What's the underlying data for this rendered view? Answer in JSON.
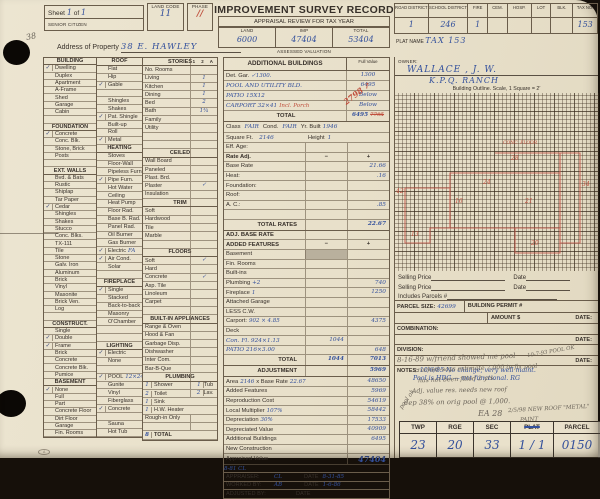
{
  "header": {
    "sheet_label": "Sheet",
    "sheet_no": "1",
    "of_label": "of",
    "sheet_total": "1",
    "senior_citizen": "SENIOR CITIZEN",
    "land_code_label": "LAND CODE",
    "land_code_value": "11",
    "phase_label": "PHASE",
    "phase_value": "∕∕",
    "title": "IMPROVEMENT SURVEY RECORD",
    "subtitle": "APPRAISAL REVIEW FOR TAX YEAR",
    "valuation": {
      "caption": "ASSESSED VALUATION",
      "cols": [
        {
          "label": "LAND",
          "value": "6000"
        },
        {
          "label": "IMP",
          "value": "47404"
        },
        {
          "label": "TOTAL",
          "value": "53404"
        }
      ]
    },
    "district_cols": [
      {
        "label": "ROAD DISTRICT",
        "value": "1"
      },
      {
        "label": "SCHOOL DISTRICT",
        "value": "246"
      },
      {
        "label": "FIRE",
        "value": "1"
      },
      {
        "label": "CEM.",
        "value": ""
      },
      {
        "label": "HOSP.",
        "value": ""
      },
      {
        "label": "LOT",
        "value": ""
      },
      {
        "label": "BLK.",
        "value": ""
      },
      {
        "label": "TAX NO.",
        "value": "153"
      }
    ],
    "plat_name_label": "PLAT NAME",
    "plat_name_value": "TAX 153",
    "address_label": "Address of Property",
    "address_value": "38  E. HAWLEY",
    "margin_pencil_1": "38",
    "margin_pencil_2": "M"
  },
  "checklists": {
    "colA": [
      {
        "h": 1,
        "l": "BUILDING"
      },
      {
        "c": 1,
        "l": "Dwelling"
      },
      {
        "l": "Duplex"
      },
      {
        "l": "Apartment"
      },
      {
        "l": "A-Frame"
      },
      {
        "l": "Shed"
      },
      {
        "l": "Garage"
      },
      {
        "l": "Cabin"
      },
      {
        "l": ""
      },
      {
        "h": 1,
        "l": "FOUNDATION"
      },
      {
        "c": 1,
        "l": "Concrete"
      },
      {
        "l": "Conc. Blk."
      },
      {
        "l": "Stone, Brick"
      },
      {
        "l": "Posts"
      },
      {
        "l": ""
      },
      {
        "h": 1,
        "l": "EXT. WALLS"
      },
      {
        "l": "Bvd. & Bats"
      },
      {
        "l": "Rustic"
      },
      {
        "l": "Shiplap"
      },
      {
        "l": "Tar Paper"
      },
      {
        "c": 1,
        "l": "Cedar"
      },
      {
        "l": "Shingles"
      },
      {
        "l": "Shakes"
      },
      {
        "l": "Stucco"
      },
      {
        "l": "Conc. Blks."
      },
      {
        "l": "TX-111"
      },
      {
        "l": "Tile"
      },
      {
        "l": "Stone"
      },
      {
        "l": "Galv. Iron"
      },
      {
        "l": "Aluminum"
      },
      {
        "l": "Brick"
      },
      {
        "l": "Vinyl"
      },
      {
        "l": "Masonite"
      },
      {
        "l": "Brick Ven."
      },
      {
        "l": "Log"
      },
      {
        "l": ""
      },
      {
        "h": 1,
        "l": "CONSTRUCT."
      },
      {
        "l": "Single"
      },
      {
        "c": 1,
        "l": "Double"
      },
      {
        "c": 1,
        "l": "Frame"
      },
      {
        "l": "Brick"
      },
      {
        "l": "Concrete"
      },
      {
        "l": "Concrete Blk."
      },
      {
        "l": "Pumice"
      },
      {
        "h": 1,
        "l": "BASEMENT"
      },
      {
        "c": 1,
        "l": "None"
      },
      {
        "l": "Full"
      },
      {
        "l": "Part"
      },
      {
        "l": "Concrete Floor"
      },
      {
        "l": "Dirt Floor"
      },
      {
        "l": "Garage"
      },
      {
        "l": "Fin. Rooms"
      }
    ],
    "colB": [
      {
        "h": 1,
        "l": "ROOF"
      },
      {
        "l": "Flat"
      },
      {
        "l": "Hip"
      },
      {
        "c": 1,
        "l": "Gable"
      },
      {
        "l": ""
      },
      {
        "l": "Shingles"
      },
      {
        "l": "Shakes"
      },
      {
        "c": 1,
        "l": "Pat. Shingle"
      },
      {
        "l": "Built-up"
      },
      {
        "l": "Roll"
      },
      {
        "c": 1,
        "l": "Metal"
      },
      {
        "h": 1,
        "l": "HEATING"
      },
      {
        "l": "Stoves"
      },
      {
        "l": "Floor-Wall"
      },
      {
        "l": "Pipeless Furn."
      },
      {
        "c": 1,
        "l": "Pipe Furn."
      },
      {
        "l": "Hot Water"
      },
      {
        "l": "Ceiling"
      },
      {
        "l": "Heat Pump"
      },
      {
        "l": "Floor Rad."
      },
      {
        "l": "Base B. Rad."
      },
      {
        "l": "Panel Rad."
      },
      {
        "l": "Oil Burner"
      },
      {
        "l": "Gas Burner"
      },
      {
        "c": 1,
        "l": "Electric",
        "hand": "FA"
      },
      {
        "c": 1,
        "l": "Air Cond."
      },
      {
        "l": "Solar"
      },
      {
        "l": ""
      },
      {
        "h": 1,
        "l": "FIREPLACE"
      },
      {
        "c": 1,
        "l": "Single"
      },
      {
        "l": "Stacked"
      },
      {
        "l": "Back-to-back"
      },
      {
        "l": "Masonry"
      },
      {
        "l": "O'Chamber"
      },
      {
        "l": ""
      },
      {
        "l": ""
      },
      {
        "h": 1,
        "l": "LIGHTING"
      },
      {
        "c": 1,
        "l": "Electric"
      },
      {
        "l": "None"
      },
      {
        "l": ""
      },
      {
        "c": 1,
        "l": "POOL",
        "hand": "12×24"
      },
      {
        "l": "Gunite"
      },
      {
        "l": "Vinyl"
      },
      {
        "l": "Fiberglass"
      },
      {
        "c": 1,
        "l": "Concrete"
      },
      {
        "l": ""
      },
      {
        "l": "Sauna"
      },
      {
        "l": "Hot Tub"
      }
    ],
    "colC": [
      {
        "h": 1,
        "l": "STORIES",
        "v": "1 2 A B"
      },
      {
        "l": "No. Rooms"
      },
      {
        "l": "Living",
        "v": "1"
      },
      {
        "l": "Kitchen",
        "v": "1"
      },
      {
        "l": "Dining",
        "v": "1"
      },
      {
        "l": "Bed",
        "v": "2"
      },
      {
        "l": "Bath",
        "v": "1¾"
      },
      {
        "l": "Family"
      },
      {
        "l": "Utility"
      },
      {
        "l": ""
      },
      {
        "l": ""
      },
      {
        "h": 1,
        "l": "CEILED"
      },
      {
        "l": "Wall Board"
      },
      {
        "l": "Paneled"
      },
      {
        "l": "Plast. Brd."
      },
      {
        "l": "Plaster",
        "v": "✓"
      },
      {
        "l": "Insulation"
      },
      {
        "h": 1,
        "l": "TRIM"
      },
      {
        "l": "Soft"
      },
      {
        "l": "Hardwood"
      },
      {
        "l": "Tile"
      },
      {
        "l": "Marble"
      },
      {
        "l": ""
      },
      {
        "h": 1,
        "l": "FLOORS"
      },
      {
        "l": "Soft",
        "v": "✓"
      },
      {
        "l": "Hard"
      },
      {
        "l": "Concrete",
        "v": "✓"
      },
      {
        "l": "Asp. Tile"
      },
      {
        "l": "Linoleum"
      },
      {
        "l": "Carpet"
      },
      {
        "l": ""
      },
      {
        "h": 1,
        "l": "BUILT-IN APPLIANCES"
      },
      {
        "l": "Range & Oven"
      },
      {
        "c": 1,
        "l": "Hood & Fan"
      },
      {
        "l": "Garbage Disp."
      },
      {
        "c": 1,
        "l": "Dishwasher"
      },
      {
        "l": "Inter Com."
      },
      {
        "l": "Bar-B-Que"
      },
      {
        "h": 1,
        "l": "PLUMBING"
      },
      {
        "n": "1",
        "l": "Shower",
        "n2": "1",
        "l2": "Tub"
      },
      {
        "n": "2",
        "l": "Toilet",
        "n2": "2",
        "l2": "Lav."
      },
      {
        "n": "1",
        "l": "Sink"
      },
      {
        "n": "1",
        "l": "H.W. Heater"
      },
      {
        "l": "Rough-in Only"
      },
      {
        "l": ""
      },
      {
        "n": "8",
        "l": "TOTAL",
        "total": 1
      }
    ]
  },
  "additional_buildings": {
    "title": "ADDITIONAL BUILDINGS",
    "full_value_label": "Full Value",
    "rows": [
      {
        "desc": "Det. Gar.",
        "hand": "✓1300.",
        "v": "1300"
      },
      {
        "desc": "POOL AND UTILITY BLD.",
        "hwdesc": 1,
        "v": "6495"
      },
      {
        "desc": "PATIO 15X12",
        "hwdesc": 1,
        "v": "Below"
      },
      {
        "desc": "CARPORT 32×41",
        "hwdesc": 1,
        "red": "Incl. Porch",
        "v": "Below"
      }
    ],
    "total_label": "TOTAL",
    "total_value": "6495",
    "total_struck": "7795",
    "diag_note": "2798 ↗"
  },
  "class_row": {
    "class_label": "Class",
    "class_value": "FAIR",
    "cond_label": "Cond.",
    "cond_value": "FAIR",
    "yr_label": "Yr. Built",
    "yr_value": "1946"
  },
  "sqft_row": {
    "label": "Square Ft.",
    "value": "2146",
    "height_label": "Height",
    "height_value": "1"
  },
  "rates": [
    {
      "l": "Eff. Age:"
    },
    {
      "l": "Rate Adj.",
      "m": "−",
      "p": "+",
      "hd": 1
    },
    {
      "l": "Base Rate",
      "p": "21.66"
    },
    {
      "l": "Heat:",
      "p": ".16"
    },
    {
      "l": "Foundation:"
    },
    {
      "l": "Roof:"
    },
    {
      "l": "A. C.:",
      "p": ".85"
    },
    {
      "l": ""
    },
    {
      "l": "TOTAL RATES",
      "p": "22.67",
      "tot": 1
    },
    {
      "l": "ADJ. BASE RATE",
      "hd": 1
    }
  ],
  "added_features": [
    {
      "l": "ADDED FEATURES",
      "m": "−",
      "p": "+",
      "hd": 1
    },
    {
      "l": "Basement",
      "shade": 1
    },
    {
      "l": "Fin. Rooms"
    },
    {
      "l": "Built-ins"
    },
    {
      "l": "Plumbing",
      "hand": "+2",
      "p": "740"
    },
    {
      "l": "Fireplace",
      "hand": "1",
      "p": "1250"
    },
    {
      "l": "Attached Garage"
    },
    {
      "l": "LESS C.W."
    },
    {
      "l": "Carport:",
      "hand": "902 × 4.85",
      "p": "4375"
    },
    {
      "l": "Deck"
    },
    {
      "l": "Con. Fl. 924×1.13",
      "hw": 1,
      "m": "1044"
    },
    {
      "l": "PATIO 216×3.00",
      "hw": 1,
      "p": "648"
    },
    {
      "l": "TOTAL",
      "m": "1044",
      "p": "7013",
      "tot": 1
    },
    {
      "l": "ADJUSTMENT",
      "p": "5969",
      "tot": 1
    }
  ],
  "costs": [
    {
      "pre": "Area",
      "h1": "2146",
      "mid": "x Base Rate",
      "h2": "22.67",
      "v": "48650"
    },
    {
      "pre": "Added Features",
      "v": "5969"
    },
    {
      "pre": "Reproduction Cost",
      "v": "54619"
    },
    {
      "pre": "Local Multiplier",
      "h2": "107%",
      "v": "58442"
    },
    {
      "pre": "Depreciation",
      "h2": "30%",
      "v": "17533"
    },
    {
      "pre": "Depreciated Value",
      "v": "40909"
    },
    {
      "pre": "Additional Buildings",
      "v": "6495"
    },
    {
      "pre": "New Construction",
      "v": ""
    },
    {
      "pre": "Appraised Value",
      "v": "47404",
      "big": 1
    },
    {
      "handnote": "8-81  CL"
    }
  ],
  "signoff": [
    {
      "l": "APPRAISER:",
      "h": "CL",
      "dl": "DATE",
      "d": "8-31-85"
    },
    {
      "l": "WORKED BY:",
      "h": "AB",
      "dl": "DATE",
      "d": "1-6-86"
    },
    {
      "l": "ADJUSTED BY:",
      "h": "",
      "dl": "DATE",
      "d": ""
    }
  ],
  "right": {
    "owner_label": "OWNER:",
    "owner_name": "WALLACE , J. W.",
    "owner_name2": "K.P.Q.  RANCH",
    "grid_caption": "Building Outline.  Scale, 1 Square = 2′",
    "outline_dims": [
      "42",
      "13",
      "16",
      "24",
      "21",
      "20",
      "28",
      "34"
    ],
    "outline_note": "CONC. FLOOR",
    "selling": [
      {
        "label": "Selling Price",
        "date_label": "Date"
      },
      {
        "label": "Selling Price",
        "date_label": "Date"
      }
    ],
    "includes_label": "Includes Parcels #",
    "parcel": {
      "size_label": "PARCEL SIZE:",
      "size_value": "42699",
      "permit_label": "BUILDING PERMIT #",
      "amount_label": "AMOUNT $",
      "date_label": "DATE:",
      "combination_label": "COMBINATION:",
      "division_label": "DIVISION:"
    },
    "notes_label": "NOTES:",
    "notes_lines": [
      "10/6/85  No change, very well maint.",
      "Pool is HDG — not functional.  RG"
    ],
    "pencil_notes": [
      "8-16-89  w/friend showed me pool",
      "10-7-93  POOL OK",
      "cracked–says estimate 7,000 to fix pool",
      "has not been filled 2 yrs.",
      "Adj. value res. needs new roof",
      "dep 38% on orig pool @ 1,000.",
      "EA 28",
      "2/5/98  NEW ROOF \"METAL\"",
      "PAINT",
      "pool ok"
    ]
  },
  "footer": {
    "cols": [
      {
        "label": "TWP",
        "value": "23"
      },
      {
        "label": "RGE",
        "value": "20"
      },
      {
        "label": "SEC",
        "value": "33"
      },
      {
        "label": "PLAT",
        "value": "1 / 1",
        "struck": true
      },
      {
        "label": "PARCEL",
        "value": "0150"
      }
    ]
  },
  "printer_mark": "A"
}
